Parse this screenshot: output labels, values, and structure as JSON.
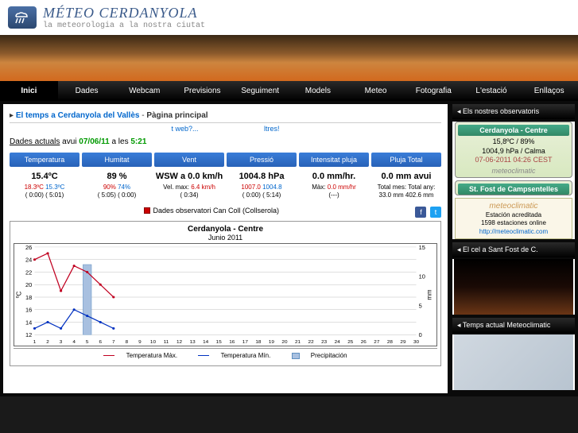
{
  "header": {
    "title": "MÉTEO CERDANYOLA",
    "tagline": "la meteorologia a la nostra ciutat"
  },
  "nav": [
    "Inici",
    "Dades",
    "Webcam",
    "Previsions",
    "Seguiment",
    "Models",
    "Meteo",
    "Fotografia",
    "L'estació",
    "Enllaços"
  ],
  "breadcrumb": {
    "prefix": "El temps a Cerdanyola del Vallès",
    "page": "Pàgina principal"
  },
  "miniLinks": {
    "a": "t web?...",
    "b": "ltres!"
  },
  "current": {
    "label": "Dades actuals",
    "avui": "avui",
    "date": "07/06/11",
    "ales": "a les",
    "time": "5:21"
  },
  "metrics": [
    {
      "hdr": "Temperatura",
      "val": "15.4ºC",
      "sub1": "18.3ºC",
      "sub1c": "red",
      "t1": "( 0:00)",
      "sub2": "15.3ºC",
      "sub2c": "blu",
      "t2": "( 5:01)"
    },
    {
      "hdr": "Humitat",
      "val": "89 %",
      "sub1": "90%",
      "sub1c": "red",
      "t1": "( 5:05)",
      "sub2": "74%",
      "sub2c": "blu",
      "t2": "( 0:00)"
    },
    {
      "hdr": "Vent",
      "val": "WSW a 0.0 km/h",
      "sub1": "Vel. max:",
      "sub1c": "",
      "t1": "",
      "sub2": "6.4 km/h",
      "sub2c": "red",
      "t2": "( 0:34)"
    },
    {
      "hdr": "Pressió",
      "val": "1004.8 hPa",
      "sub1": "1007.0",
      "sub1c": "red",
      "t1": "( 0:00)",
      "sub2": "1004.8",
      "sub2c": "blu",
      "t2": "( 5:14)"
    },
    {
      "hdr": "Intensitat pluja",
      "val": "0.0 mm/hr.",
      "sub1": "Màx:",
      "sub1c": "",
      "t1": "",
      "sub2": "0.0 mm/hr",
      "sub2c": "red",
      "t2": "(---)"
    },
    {
      "hdr": "Pluja Total",
      "val": "0.0 mm avui",
      "sub1": "Total mes:",
      "sub1c": "",
      "t1": "33.0 mm",
      "sub2": "Total any:",
      "sub2c": "",
      "t2": "402.6 mm"
    }
  ],
  "obsLegend": "Dades observatori Can Coll (Collserola)",
  "chart": {
    "title": "Cerdanyola - Centre",
    "subtitle": "Junio 2011",
    "yLeftLabel": "ºC",
    "yRightLabel": "mm",
    "yLeft": [
      26,
      24,
      22,
      20,
      18,
      16,
      14,
      12
    ],
    "yRight": [
      15,
      10,
      5,
      0
    ],
    "xTicks": [
      1,
      2,
      3,
      4,
      5,
      6,
      7,
      8,
      9,
      10,
      11,
      12,
      13,
      14,
      15,
      16,
      17,
      18,
      19,
      20,
      21,
      22,
      23,
      24,
      25,
      26,
      27,
      28,
      29,
      30
    ],
    "series": {
      "tmax": {
        "label": "Temperatura Màx.",
        "color": "#c00020",
        "values": [
          24,
          25,
          19,
          23,
          22,
          20,
          18
        ]
      },
      "tmin": {
        "label": "Temperatura Mín.",
        "color": "#0030c0",
        "values": [
          13,
          14,
          13,
          16,
          15,
          14,
          13
        ]
      },
      "precip": {
        "label": "Precipitación",
        "color": "#6090c0",
        "day": 5,
        "value": 12
      }
    },
    "bg": "#ffffff",
    "grid": "#c0c0c0"
  },
  "sidebar": {
    "obsHdr": "Els nostres observatoris",
    "obs1": {
      "title": "Cerdanyola - Centre",
      "temp": "15,8ºC / 89%",
      "press": "1004,9 hPa / Calma",
      "ts": "07-06-2011 04:26 CEST",
      "brand": "meteoclimatic"
    },
    "obs2": {
      "title": "St. Fost de Campsentelles",
      "brand": "meteoclimatic",
      "sub1": "Estación acreditada",
      "sub2": "1598 estaciones online",
      "url": "http://meteoclimatic.com"
    },
    "skyHdr": "El cel a Sant Fost de C.",
    "mapHdr": "Temps actual Meteoclimatic"
  }
}
